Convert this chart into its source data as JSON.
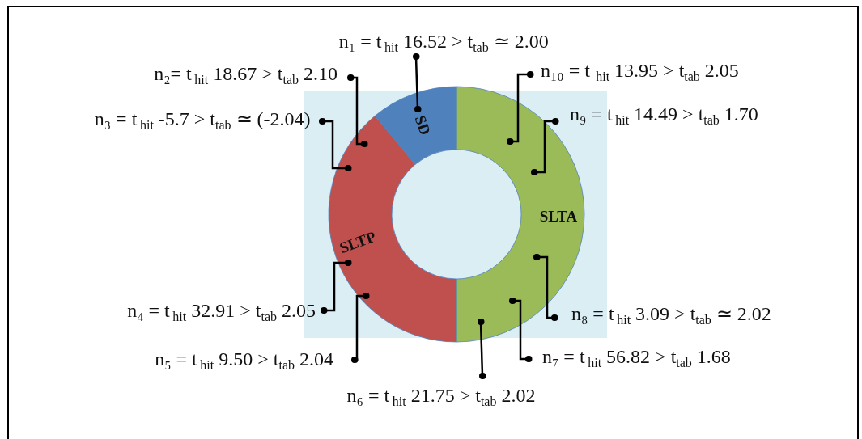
{
  "chart_data": {
    "type": "donut",
    "categories": [
      "SLTA",
      "SLTP",
      "SD"
    ],
    "values": [
      50,
      39,
      11
    ],
    "colors": [
      "#9bbb59",
      "#c0504d",
      "#4f81bd"
    ],
    "annotations": [
      "n₁ = t$_{hit}$ 16.52 > t$_{tab}$ ≃ 2.00",
      "n₂= t$_{hit}$ 18.67 > t$_{tab}$ 2.10",
      "n₃ = t$_{hit}$ -5.7 > t$_{tab}$ ≃ (-2.04)",
      "n₄ = t$_{hit}$ 32.91 > t$_{tab}$ 2.05",
      "n₅ = t$_{hit}$ 9.50 > t$_{tab}$ 2.04",
      "n₆ = t$_{hit}$ 21.75 > t$_{tab}$ 2.02",
      "n₇ = t$_{hit}$ 56.82 > t$_{tab}$ 1.68",
      "n₈ = t$_{hit}$ 3.09 > t$_{tab}$ ≃ 2.02",
      "n₉ = t$_{hit}$ 14.49 > t$_{tab}$ 1.70",
      "n₁₀ = t$_{hit}$ 13.95 > t$_{tab}$ 2.05"
    ]
  }
}
